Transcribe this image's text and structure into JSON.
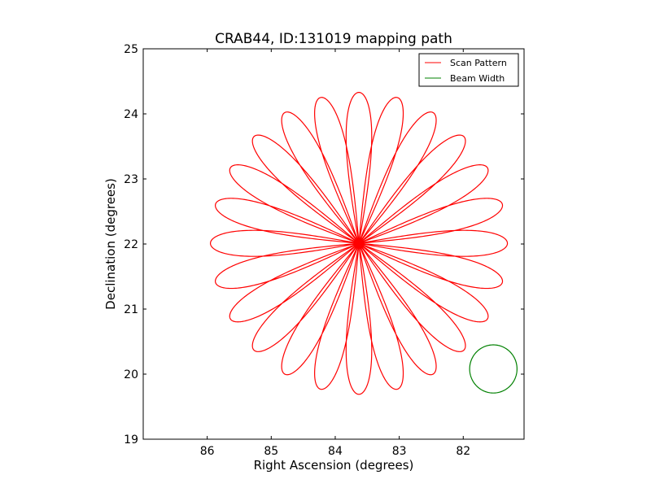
{
  "chart_data": {
    "type": "line",
    "title": "CRAB44, ID:131019 mapping path",
    "xlabel": "Right Ascension (degrees)",
    "ylabel": "Declination (degrees)",
    "xlim": [
      87.0,
      81.05
    ],
    "ylim": [
      19,
      25
    ],
    "x_ticks": [
      86,
      85,
      84,
      83,
      82
    ],
    "y_ticks": [
      19,
      20,
      21,
      22,
      23,
      24,
      25
    ],
    "x_tick_labels": [
      "86",
      "85",
      "84",
      "83",
      "82"
    ],
    "y_tick_labels": [
      "19",
      "20",
      "21",
      "22",
      "23",
      "24",
      "25"
    ],
    "grid": false,
    "legend": "top-right",
    "series": [
      {
        "name": "Scan Pattern",
        "color": "#ff0000",
        "pattern": "rosette",
        "center": [
          83.63,
          22.01
        ],
        "petals": 24,
        "radius": 2.32,
        "petal_halfwidth": 0.2
      },
      {
        "name": "Beam Width",
        "color": "#008000",
        "pattern": "circle",
        "center": [
          81.53,
          20.08
        ],
        "radius": 0.37
      }
    ]
  }
}
